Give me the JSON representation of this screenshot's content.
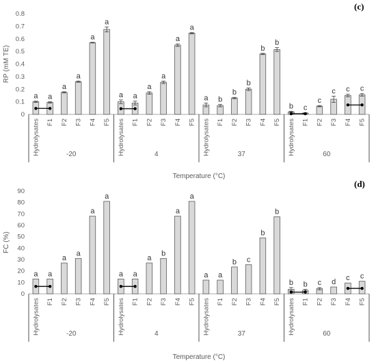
{
  "chart_data": [
    {
      "panel_label": "(c)",
      "type": "bar",
      "ylabel": "RP (mM TE)",
      "xlabel": "Temperature (°C)",
      "ylim": [
        0,
        0.8
      ],
      "yticks": [
        "0",
        "0.1",
        "0.2",
        "0.3",
        "0.4",
        "0.5",
        "0.6",
        "0.7",
        "0.8"
      ],
      "groups": [
        {
          "name": "-20",
          "categories": [
            "Hydrolysates",
            "F1",
            "F2",
            "F3",
            "F4",
            "F5"
          ],
          "values": [
            0.1,
            0.095,
            0.175,
            0.26,
            0.57,
            0.675
          ],
          "errors": [
            0.005,
            0.005,
            0.005,
            0.005,
            0.003,
            0.02
          ],
          "letters": [
            "a",
            "a",
            "a",
            "a",
            "a",
            "a"
          ],
          "bracket": [
            0,
            1
          ]
        },
        {
          "name": "4",
          "categories": [
            "Hydrolysates",
            "F1",
            "F2",
            "F3",
            "F4",
            "F5"
          ],
          "values": [
            0.1,
            0.09,
            0.17,
            0.255,
            0.55,
            0.645
          ],
          "errors": [
            0.015,
            0.015,
            0.01,
            0.01,
            0.01,
            0.005
          ],
          "letters": [
            "a",
            "a",
            "a",
            "a",
            "a",
            "a"
          ],
          "bracket": [
            0,
            1
          ]
        },
        {
          "name": "37",
          "categories": [
            "Hydrolysates",
            "F1",
            "F2",
            "F3",
            "F4",
            "F5"
          ],
          "values": [
            0.075,
            0.07,
            0.13,
            0.2,
            0.48,
            0.515
          ],
          "errors": [
            0.015,
            0.01,
            0.005,
            0.01,
            0.005,
            0.015
          ],
          "letters": [
            "a",
            "b",
            "b",
            "b",
            "b",
            "b"
          ],
          "bracket": null
        },
        {
          "name": "60",
          "categories": [
            "Hydrolysates",
            "F1",
            "F2",
            "F3",
            "F4",
            "F5"
          ],
          "values": [
            0.02,
            0.01,
            0.065,
            0.12,
            0.15,
            0.155
          ],
          "errors": [
            0.005,
            0.003,
            0.005,
            0.025,
            0.01,
            0.01
          ],
          "letters": [
            "b",
            "c",
            "c",
            "c",
            "c",
            "c"
          ],
          "bracket": [
            0,
            1
          ],
          "bracket2": [
            4,
            5
          ]
        }
      ]
    },
    {
      "panel_label": "(d)",
      "type": "bar",
      "ylabel": "FC (%)",
      "xlabel": "Temperature (°C)",
      "ylim": [
        0,
        90
      ],
      "yticks": [
        "0",
        "10",
        "20",
        "30",
        "40",
        "50",
        "60",
        "70",
        "80",
        "90"
      ],
      "groups": [
        {
          "name": "-20",
          "categories": [
            "Hydrolysates",
            "F1",
            "F2",
            "F3",
            "F4",
            "F5"
          ],
          "values": [
            13,
            13,
            27,
            31,
            68,
            81
          ],
          "errors": [
            0,
            0,
            0,
            0,
            0,
            0
          ],
          "letters": [
            "a",
            "a",
            "a",
            "a",
            "a",
            "a"
          ],
          "bracket": [
            0,
            1
          ]
        },
        {
          "name": "4",
          "categories": [
            "Hydrolysates",
            "F1",
            "F2",
            "F3",
            "F4",
            "F5"
          ],
          "values": [
            13,
            13,
            27,
            31,
            68,
            81
          ],
          "errors": [
            0,
            0,
            0,
            0,
            0,
            0
          ],
          "letters": [
            "a",
            "a",
            "a",
            "b",
            "a",
            "a"
          ],
          "bracket": [
            0,
            1
          ]
        },
        {
          "name": "37",
          "categories": [
            "Hydrolysates",
            "F1",
            "F2",
            "F3",
            "F4",
            "F5"
          ],
          "values": [
            12,
            12,
            23.5,
            25.5,
            49,
            67.5
          ],
          "errors": [
            0,
            0,
            0,
            0,
            0,
            0
          ],
          "letters": [
            "a",
            "a",
            "b",
            "c",
            "b",
            "b"
          ],
          "bracket": null
        },
        {
          "name": "60",
          "categories": [
            "Hydrolysates",
            "F1",
            "F2",
            "F3",
            "F4",
            "F5"
          ],
          "values": [
            4,
            3,
            4.5,
            6,
            9.5,
            11
          ],
          "errors": [
            1.5,
            1,
            1,
            0,
            0,
            0
          ],
          "letters": [
            "b",
            "b",
            "c",
            "d",
            "c",
            "c"
          ],
          "bracket": [
            0,
            1
          ],
          "bracket2": [
            4,
            5
          ]
        }
      ]
    }
  ]
}
